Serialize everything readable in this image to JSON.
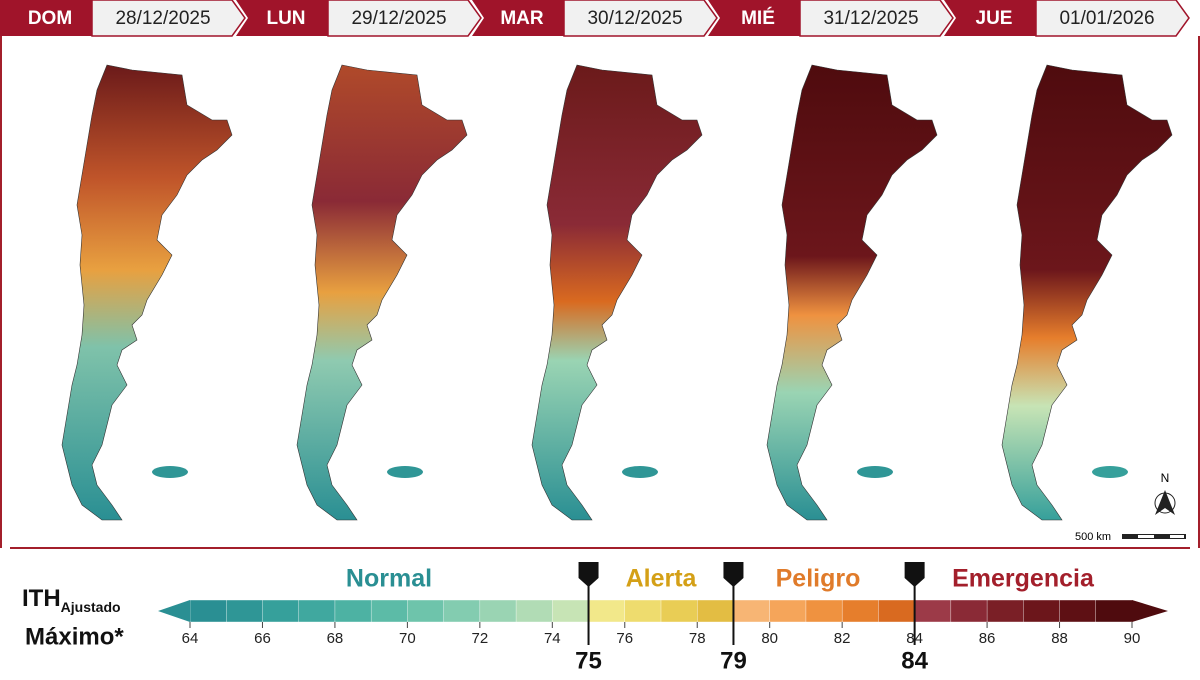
{
  "header": {
    "days": [
      {
        "day": "DOM",
        "date": "28/12/2025"
      },
      {
        "day": "LUN",
        "date": "29/12/2025"
      },
      {
        "day": "MAR",
        "date": "30/12/2025"
      },
      {
        "day": "MIÉ",
        "date": "31/12/2025"
      },
      {
        "day": "JUE",
        "date": "01/01/2026"
      }
    ]
  },
  "map": {
    "north_label": "N",
    "scale_label": "500 km"
  },
  "legend": {
    "title": "ITH",
    "title_subscript": "Ajustado",
    "title_line2": "Máximo*",
    "categories": [
      "Normal",
      "Alerta",
      "Peligro",
      "Emergencia"
    ],
    "category_colors": [
      "#2a8f93",
      "#d4a017",
      "#e07b2a",
      "#a31f2b"
    ],
    "scale": {
      "min": 64,
      "max": 90,
      "ticks": [
        64,
        66,
        68,
        70,
        72,
        74,
        76,
        78,
        80,
        82,
        84,
        86,
        88,
        90
      ],
      "thresholds": [
        75,
        79,
        84
      ],
      "colors": [
        "#2a8f93",
        "#2f9696",
        "#36a09b",
        "#40a89f",
        "#4db2a3",
        "#5cbba7",
        "#6ec4ab",
        "#83ccb0",
        "#9ad4b3",
        "#b1dcb5",
        "#c7e4b5",
        "#f2e88a",
        "#eedc6e",
        "#e9cd55",
        "#e3bd43",
        "#f7b574",
        "#f5a55a",
        "#ef9240",
        "#e67e2c",
        "#d96a20",
        "#9c3a48",
        "#8a2a36",
        "#7a1f26",
        "#6c161b",
        "#5e1014",
        "#4f0b0e"
      ]
    }
  }
}
